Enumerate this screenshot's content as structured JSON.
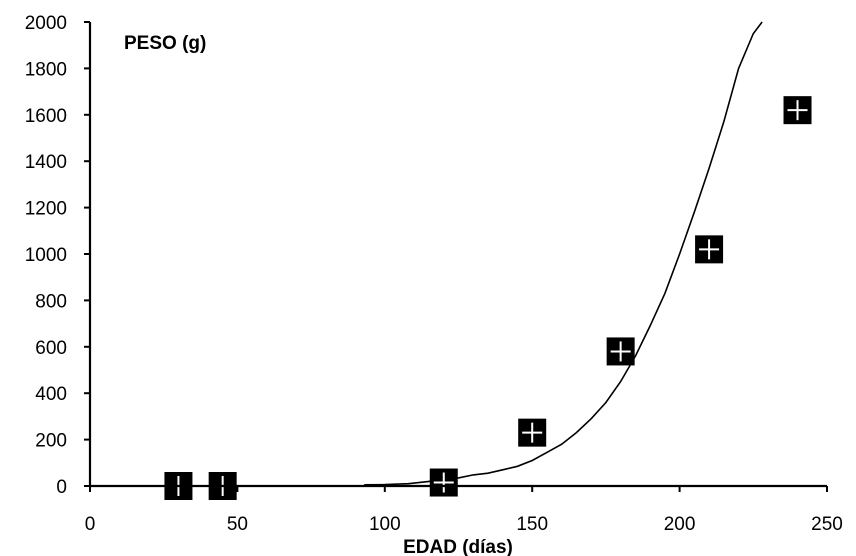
{
  "chart_data": {
    "type": "scatter",
    "title": "",
    "xlabel": "EDAD (días)",
    "ylabel": "PESO (g)",
    "xlim": [
      0,
      250
    ],
    "ylim": [
      0,
      2000
    ],
    "x_ticks": [
      0,
      50,
      100,
      150,
      200,
      250
    ],
    "y_ticks": [
      0,
      200,
      400,
      600,
      800,
      1000,
      1200,
      1400,
      1600,
      1800,
      2000
    ],
    "grid": false,
    "legend": "none",
    "series": [
      {
        "type": "scatter",
        "marker": "square-with-white-cross",
        "color": "#000000",
        "x": [
          30,
          45,
          120,
          150,
          180,
          210,
          240
        ],
        "y": [
          0,
          0,
          15,
          230,
          580,
          1020,
          1620
        ]
      },
      {
        "type": "line",
        "style": "fitted-curve",
        "color": "#000000",
        "x": [
          93,
          100,
          108,
          115,
          120,
          125,
          130,
          135,
          140,
          145,
          150,
          155,
          160,
          165,
          170,
          175,
          180,
          185,
          190,
          195,
          200,
          205,
          210,
          215,
          220,
          225,
          228
        ],
        "y": [
          5,
          6,
          10,
          20,
          27,
          35,
          48,
          55,
          70,
          85,
          110,
          145,
          180,
          230,
          290,
          360,
          450,
          560,
          690,
          830,
          1000,
          1180,
          1370,
          1570,
          1800,
          1950,
          2000
        ]
      }
    ]
  }
}
